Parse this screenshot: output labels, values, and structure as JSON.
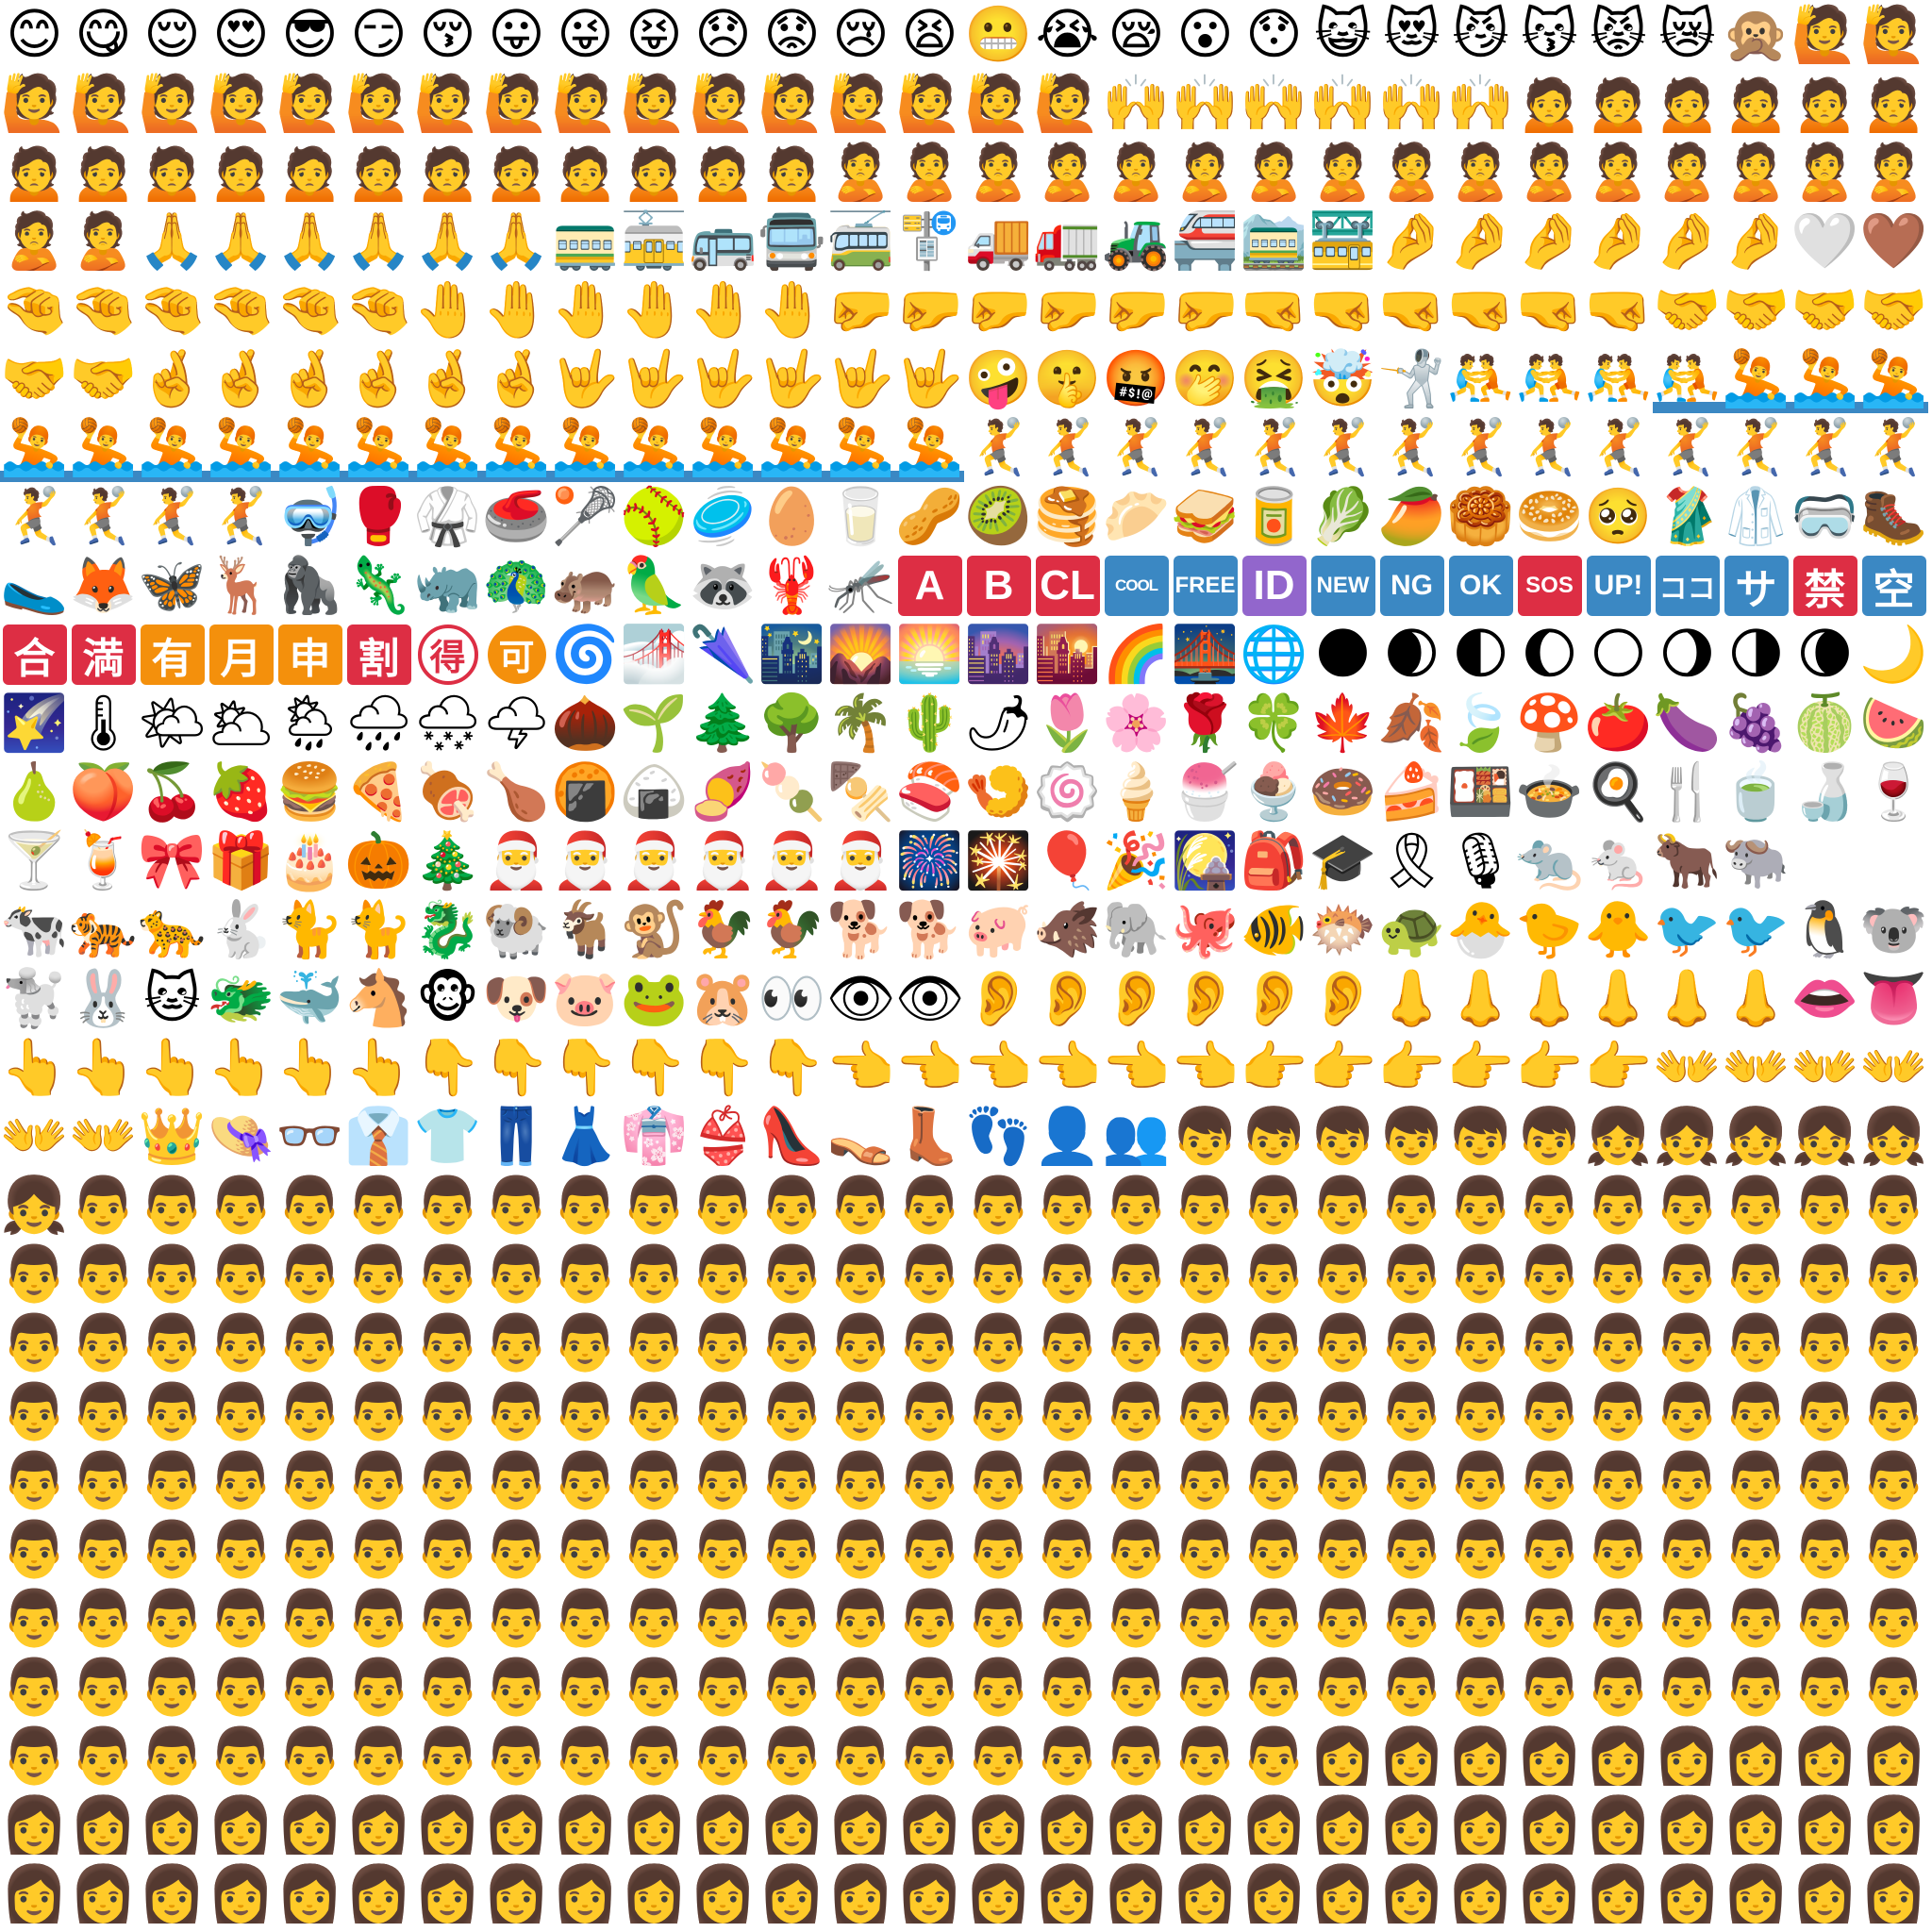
{
  "colors": {
    "red": "#dd2e44",
    "blue": "#3b88c3",
    "purple": "#9266cc",
    "orange": "#f4900c",
    "water": "#3b88c3",
    "background": "#ffffff"
  },
  "sheet": {
    "rows": [
      "😊😋😌😍😎😏😚😛😜😝😞😟😢😫😬😭😪😮😯😺😻😼😽😾😿🙊🙋🙋",
      "🙋🙋🙋🙋🙋🙋🙋🙋🙋🙋🙋🙋🙋🙋🙋🙋🙌🙌🙌🙌🙌🙌🙍🙍🙍🙍🙍🙍",
      "🙍🙍🙍🙍🙍🙍🙍🙍🙍🙍🙍🙍🙎🙎🙎🙎🙎🙎🙎🙎🙎🙎🙎🙎🙎🙎🙎🙎",
      "🙎🙎🙏🙏🙏🙏🙏🙏🚃🚋🚌🚍🚎🚏🚚🚛🚜🚝🚞🚟🤌🤌🤌🤌🤌🤌🤍🤎",
      "🤏🤏🤏🤏🤏🤏🤚🤚🤚🤚🤚🤚🤛🤛🤛🤛🤛🤛🤜🤜🤜🤜🤜🤜🤝🤝🤝🤝",
      "🤝🤝🤞🤞🤞🤞🤞🤞🤟🤟🤟🤟🤟🤟🤪🤫🤬🤭🤮🤯🤺🤼🤼🤼🤼🤽🤽🤽",
      "🤽🤽🤽🤽🤽🤽🤽🤽🤽🤽🤽🤽🤽🤽🤾🤾🤾🤾🤾🤾🤾🤾🤾🤾🤾🤾🤾🤾",
      "🤾🤾🤾🤾🤿🥊🥋🥌🥍🥎🥏🥚🥛🥜🥝🥞🥟🥪🥫🥬🥭🥮🥯🥺🥻🥼🥽🥾",
      "🥿🦊🦋🦌🦍🦎🦏🦚🦛🦜🦝🦞🦟🅰🅱🆑🆒🆓🆔🆕🆖🆗🆘🆙🈁🈂🈲🈳",
      "🈴🈵🈶🈷🈸🈹🉐🉑🌀🌁🌂🌃🌄🌅🌆🌇🌈🌉🌐🌑🌒🌓🌔🌕🌖🌗🌘🌙",
      "🌠🌡🌤🌥🌦🌧🌨🌩🌰🌱🌲🌳🌴🌵🌶🌷🌸🌹🍀🍁🍂🍃🍄🍅🍆🍇🍈🍉",
      "🍐🍑🍒🍓🍔🍕🍖🍗🍘🍙🍠🍡🍢🍣🍤🍥🍦🍧🍨🍩🍰🍱🍲🍳🍴🍵🍶🍷",
      "🍸🍹🎀🎁🎂🎃🎄🎅🎅🎅🎅🎅🎅🎆🎇🎈🎉🎑🎒🎓🎗🎙🐀🐁🐂🐃",
      "🐄🐅🐆🐇🐈🐈🐉🐏🐐🐒🐓🐓🐕🐕🐖🐗🐘🐙🐠🐡🐢🐣🐤🐥🐦🐦🐧🐨",
      "🐩🐰🐱🐲🐳🐴🐵🐶🐷🐸🐹👀👁👁👂👂👂👂👂👂👃👃👃👃👃👃👄👅",
      "👆👆👆👆👆👆👇👇👇👇👇👇👈👈👈👈👈👈👉👉👉👉👉👉👐👐👐👐",
      "👐👐👑👒👓👔👕👖👗👘👙👠👡👢👣👤👥👦👦👦👦👦👦👧👧👧👧👧",
      "👧👨👨👨👨👨👨👨👨👨👨👨👨👨👨👨👨👨👨👨👨👨👨👨👨👨👨👨",
      "👨👨👨👨👨👨👨👨👨👨👨👨👨👨👨👨👨👨👨👨👨👨👨👨👨👨👨👨",
      "👨👨👨👨👨👨👨👨👨👨👨👨👨👨👨👨👨👨👨👨👨👨👨👨👨👨👨👨",
      "👨👨👨👨👨👨👨👨👨👨👨👨👨👨👨👨👨👨👨👨👨👨👨👨👨👨👨👨",
      "👨👨👨👨👨👨👨👨👨👨👨👨👨👨👨👨👨👨👨👨👨👨👨👨👨👨👨👨",
      "👨👨👨👨👨👨👨👨👨👨👨👨👨👨👨👨👨👨👨👨👨👨👨👨👨👨👨👨",
      "👨👨👨👨👨👨👨👨👨👨👨👨👨👨👨👨👨👨👨👨👨👨👨👨👨👨👨👨",
      "👨👨👨👨👨👨👨👨👨👨👨👨👨👨👨👨👨👨👨👨👨👨👨👨👨👨👨👨",
      "👨👨👨👨👨👨👨👨👨👨👨👨👨👨👨👨👨👨👨👩👩👩👩👩👩👩👩👩",
      "👩👩👩👩👩👩👩👩👩👩👩👩👩👩👩👩👩👩👩👩👩👩👩👩👩👩👩👩",
      "👩👩👩👩👩👩👩👩👩👩👩👩👩👩👩👩👩👩👩👩👩👩👩👩👩👩👩👩"
    ],
    "badges": [
      {
        "row": 8,
        "col": 13,
        "text": "A",
        "color": "red",
        "size": "big"
      },
      {
        "row": 8,
        "col": 14,
        "text": "B",
        "color": "red",
        "size": "big"
      },
      {
        "row": 8,
        "col": 15,
        "text": "CL",
        "color": "red",
        "size": "big"
      },
      {
        "row": 8,
        "col": 16,
        "text": "COOL",
        "color": "blue",
        "size": "tiny"
      },
      {
        "row": 8,
        "col": 17,
        "text": "FREE",
        "color": "blue",
        "size": "small"
      },
      {
        "row": 8,
        "col": 18,
        "text": "ID",
        "color": "purple",
        "size": "big"
      },
      {
        "row": 8,
        "col": 19,
        "text": "NEW",
        "color": "blue",
        "size": "small"
      },
      {
        "row": 8,
        "col": 20,
        "text": "NG",
        "color": "blue",
        "size": "mid"
      },
      {
        "row": 8,
        "col": 21,
        "text": "OK",
        "color": "blue",
        "size": "mid"
      },
      {
        "row": 8,
        "col": 22,
        "text": "SOS",
        "color": "red",
        "size": "small"
      },
      {
        "row": 8,
        "col": 23,
        "text": "UP!",
        "color": "blue",
        "size": "mid"
      },
      {
        "row": 8,
        "col": 24,
        "text": "ココ",
        "color": "blue",
        "size": "mid"
      },
      {
        "row": 8,
        "col": 25,
        "text": "サ",
        "color": "blue",
        "size": "big"
      },
      {
        "row": 8,
        "col": 26,
        "text": "禁",
        "color": "red",
        "size": "big"
      },
      {
        "row": 8,
        "col": 27,
        "text": "空",
        "color": "blue",
        "size": "big"
      },
      {
        "row": 9,
        "col": 0,
        "text": "合",
        "color": "red",
        "size": "big"
      },
      {
        "row": 9,
        "col": 1,
        "text": "満",
        "color": "red",
        "size": "big"
      },
      {
        "row": 9,
        "col": 2,
        "text": "有",
        "color": "orange",
        "size": "big"
      },
      {
        "row": 9,
        "col": 3,
        "text": "月",
        "color": "orange",
        "size": "big"
      },
      {
        "row": 9,
        "col": 4,
        "text": "申",
        "color": "orange",
        "size": "big"
      },
      {
        "row": 9,
        "col": 5,
        "text": "割",
        "color": "red",
        "size": "big"
      }
    ],
    "circle_badges": [
      {
        "row": 9,
        "col": 6,
        "text": "得",
        "color": "red",
        "style": "outline"
      },
      {
        "row": 9,
        "col": 7,
        "text": "可",
        "color": "orange",
        "style": "filled"
      }
    ],
    "water_bands": [
      {
        "row": 5,
        "col_start": 24,
        "col_end": 27
      },
      {
        "row": 6,
        "col_start": 0,
        "col_end": 13
      }
    ]
  }
}
